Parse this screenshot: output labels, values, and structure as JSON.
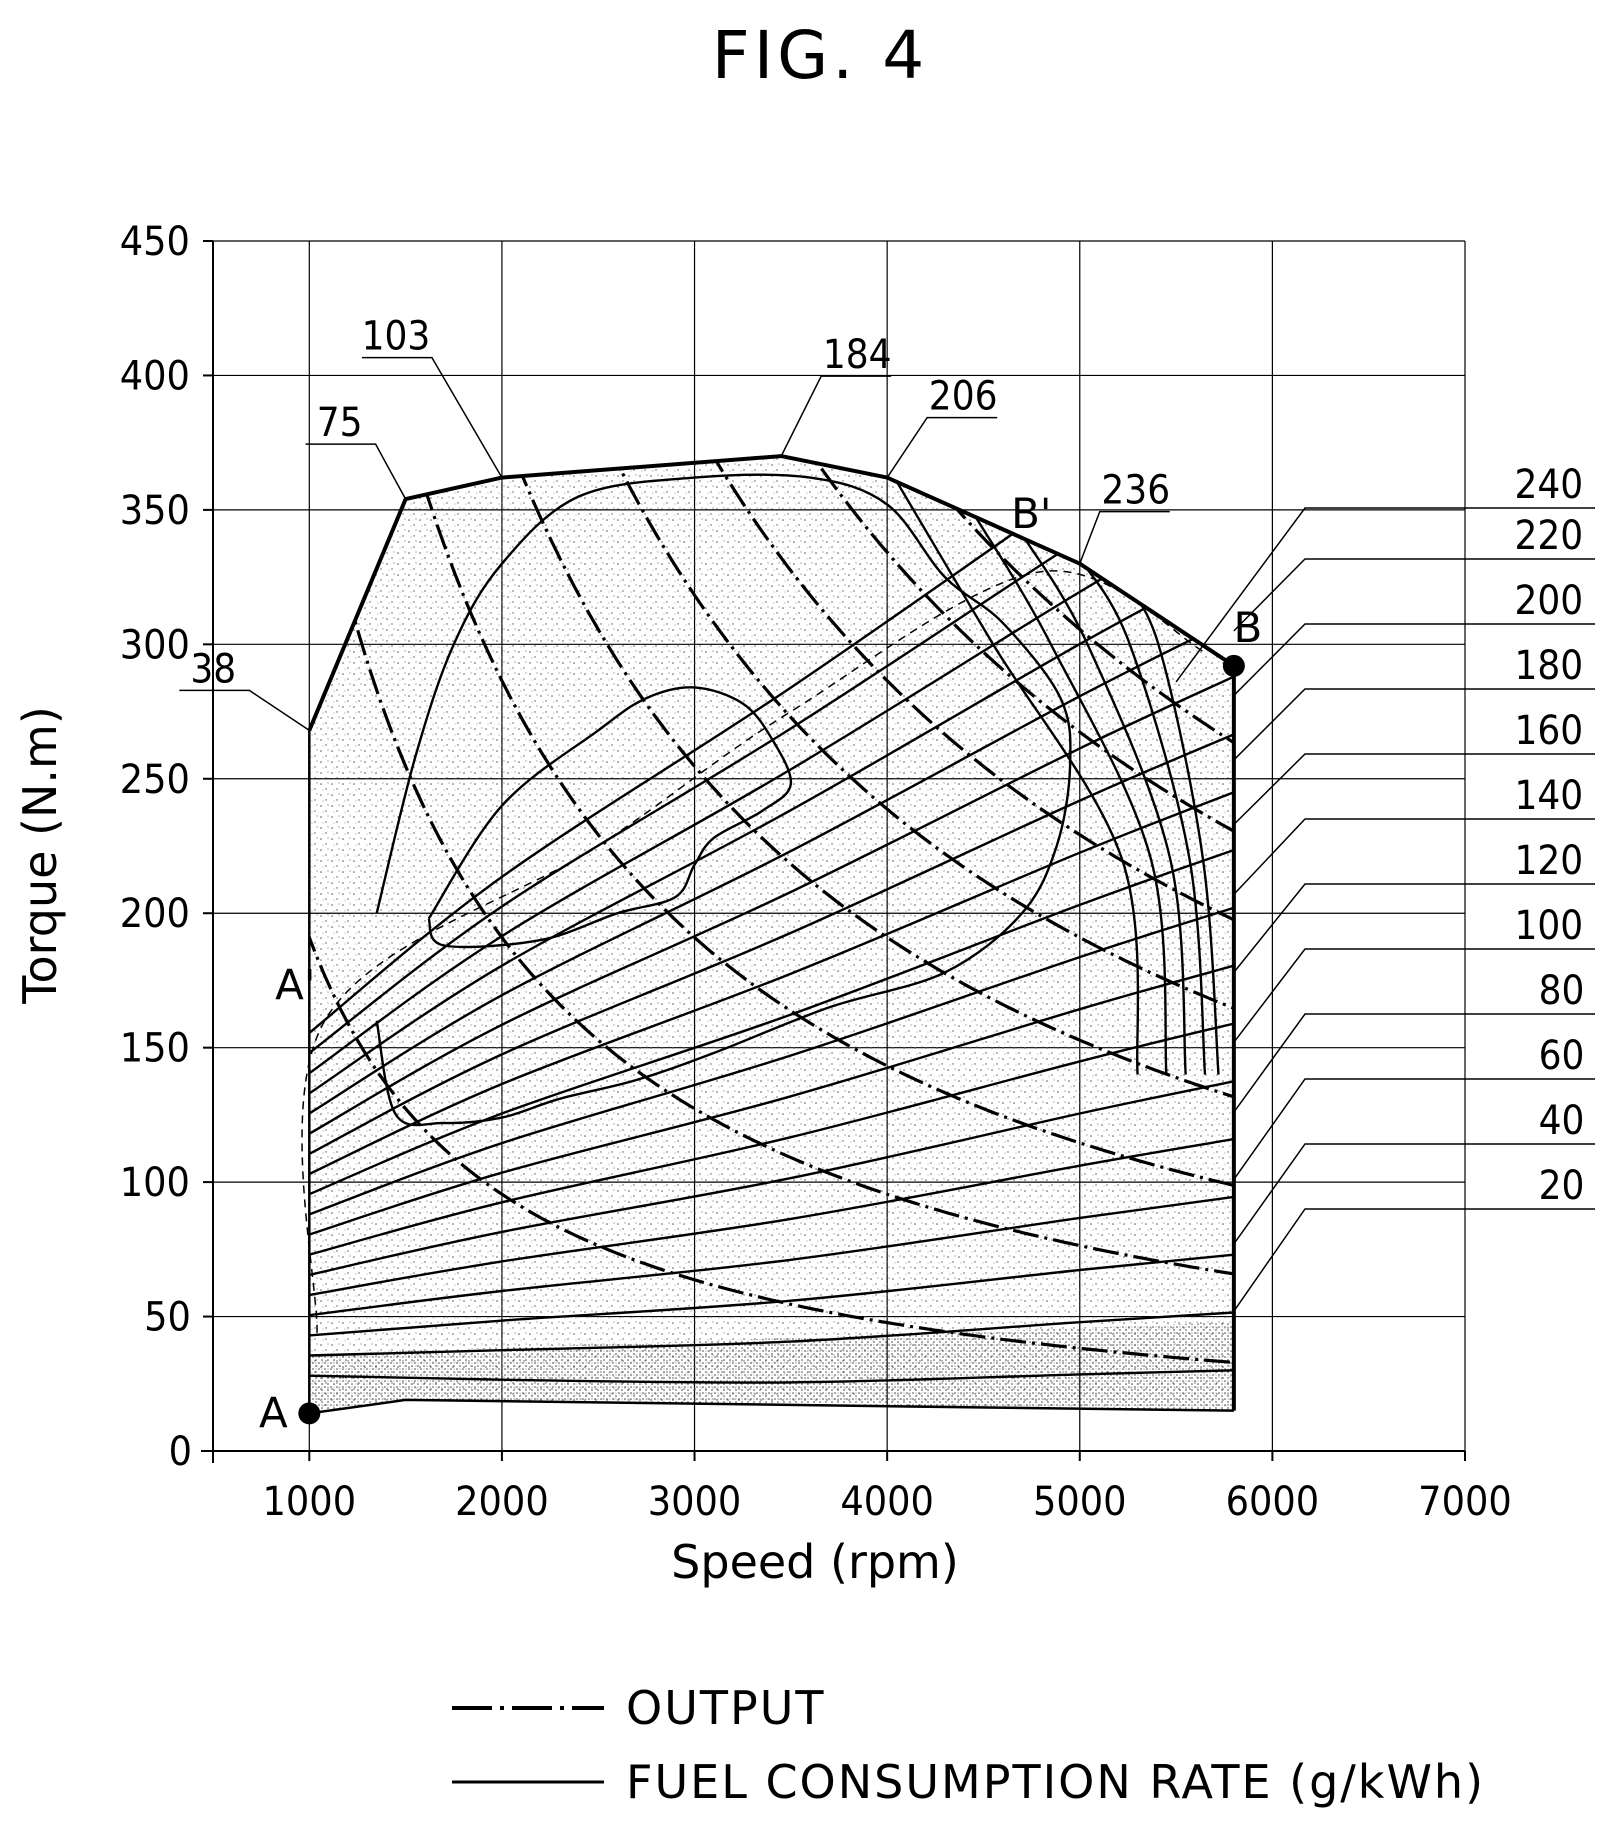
{
  "figure_title": "FIG. 4",
  "chart_data": {
    "type": "line",
    "title": "",
    "xlabel": "Speed (rpm)",
    "ylabel": "Torque (N.m)",
    "xlim": [
      500,
      7000
    ],
    "ylim": [
      0,
      450
    ],
    "x_ticks": [
      1000,
      2000,
      3000,
      4000,
      5000,
      6000,
      7000
    ],
    "y_ticks": [
      0,
      50,
      100,
      150,
      200,
      250,
      300,
      350,
      400,
      450
    ],
    "grid": true,
    "legend_placement": "bottom",
    "max_torque_curve": {
      "x": [
        1000,
        1500,
        2000,
        3450,
        4000,
        5000,
        5800
      ],
      "y": [
        268,
        354,
        362,
        370,
        362,
        330,
        292
      ]
    },
    "output_curves": {
      "labels": [
        "240",
        "220",
        "200",
        "180",
        "160",
        "140",
        "120",
        "100",
        "80",
        "60",
        "40",
        "20"
      ],
      "values": [
        240,
        220,
        200,
        180,
        160,
        140,
        120,
        100,
        80,
        60,
        40,
        20
      ],
      "label_positions": [
        {
          "label": "240",
          "x": 5800,
          "y": 426
        },
        {
          "label": "220",
          "x": 5800,
          "y": 305
        },
        {
          "label": "200",
          "x": 5800,
          "y": 281
        },
        {
          "label": "180",
          "x": 5800,
          "y": 257
        },
        {
          "label": "160",
          "x": 5800,
          "y": 233
        },
        {
          "label": "140",
          "x": 5800,
          "y": 207
        },
        {
          "label": "120",
          "x": 5800,
          "y": 178
        },
        {
          "label": "100",
          "x": 5800,
          "y": 152
        },
        {
          "label": "80",
          "x": 5800,
          "y": 126
        },
        {
          "label": "60",
          "x": 5800,
          "y": 101
        },
        {
          "label": "40",
          "x": 5800,
          "y": 77
        },
        {
          "label": "20",
          "x": 5800,
          "y": 52
        }
      ]
    },
    "reference_labels": [
      {
        "label": "38",
        "x": 1000,
        "y": 268
      },
      {
        "label": "75",
        "x": 1500,
        "y": 354
      },
      {
        "label": "103",
        "x": 2000,
        "y": 362
      },
      {
        "label": "184",
        "x": 3450,
        "y": 370
      },
      {
        "label": "206",
        "x": 4000,
        "y": 362
      },
      {
        "label": "236",
        "x": 5000,
        "y": 330
      }
    ],
    "operating_points": [
      {
        "label": "A",
        "x": 1000,
        "y": 14
      },
      {
        "label": "A'",
        "x": 1000,
        "y": 165
      },
      {
        "label": "B",
        "x": 5800,
        "y": 292
      },
      {
        "label": "B'",
        "x": 4800,
        "y": 335
      }
    ],
    "fuel_contours": {
      "inner_island": {
        "x": [
          1620,
          2000,
          2500,
          2750,
          3000,
          3250,
          3400,
          3500,
          3350,
          3100,
          3000,
          2900,
          2600,
          2200,
          1700,
          1620
        ],
        "y": [
          198,
          240,
          268,
          280,
          284,
          278,
          265,
          248,
          238,
          228,
          218,
          206,
          200,
          190,
          188,
          198
        ]
      },
      "outer_island": {
        "x": [
          1350,
          1550,
          1750,
          2000,
          2400,
          3000,
          3600,
          4000,
          4300,
          4600,
          4900,
          4950,
          4880,
          4700,
          4300,
          3700,
          3100,
          2700,
          2300,
          2000,
          1700,
          1450,
          1350
        ],
        "y": [
          200,
          258,
          300,
          330,
          355,
          362,
          362,
          352,
          325,
          308,
          280,
          255,
          225,
          200,
          178,
          165,
          148,
          138,
          131,
          124,
          122,
          125,
          160
        ]
      }
    },
    "legend": [
      {
        "label": "OUTPUT",
        "style": "dash-dot"
      },
      {
        "label": "FUEL CONSUMPTION RATE (g/kWh)",
        "style": "solid"
      }
    ]
  }
}
